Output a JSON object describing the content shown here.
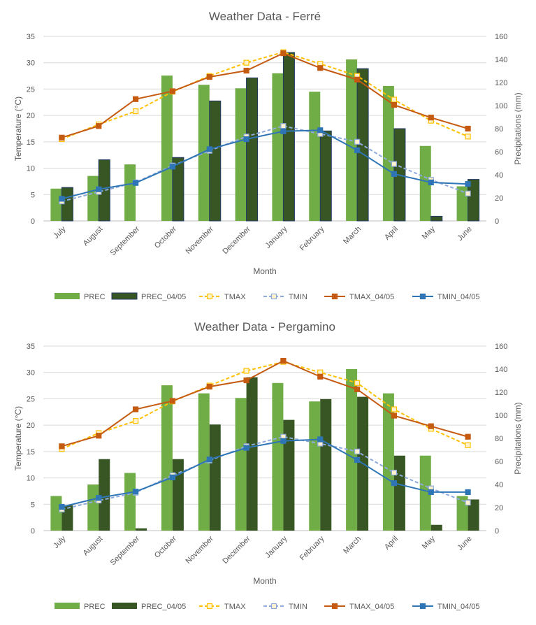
{
  "chart_data": [
    {
      "type": "bar",
      "title": "Weather Data - Ferré",
      "xlabel": "Month",
      "ylabel": "Temperature (°C)",
      "y2label": "Precipitations (mm)",
      "ylim": [
        0,
        35
      ],
      "y2lim": [
        0,
        160
      ],
      "yticks": [
        "0",
        "5",
        "10",
        "15",
        "20",
        "25",
        "30",
        "35"
      ],
      "y2ticks": [
        "0",
        "20",
        "40",
        "60",
        "80",
        "100",
        "120",
        "140",
        "160"
      ],
      "categories": [
        "July",
        "August",
        "September",
        "October",
        "November",
        "December",
        "January",
        "February",
        "March",
        "April",
        "May",
        "June"
      ],
      "series": [
        {
          "name": "PREC",
          "kind": "bar",
          "axis": "y2",
          "color": "#70ad47",
          "values": [
            28,
            39,
            49,
            126,
            118,
            115,
            128,
            112,
            140,
            117,
            65,
            30
          ]
        },
        {
          "name": "PREC_04/05",
          "kind": "bar",
          "axis": "y2",
          "color": "#375623",
          "values": [
            29,
            53,
            0,
            55,
            104,
            124,
            146,
            78,
            132,
            80,
            4,
            36
          ]
        },
        {
          "name": "TMAX",
          "kind": "line",
          "dashed": true,
          "color": "#ffc000",
          "values": [
            15.5,
            18.3,
            20.8,
            24.5,
            27.5,
            30,
            32,
            29.8,
            27.5,
            23,
            19,
            16
          ]
        },
        {
          "name": "TMIN",
          "kind": "line",
          "dashed": true,
          "color": "#8faadc",
          "values": [
            3.7,
            5.5,
            7.3,
            10.5,
            13.3,
            16,
            18,
            16.5,
            15,
            10.8,
            7.8,
            5.2
          ]
        },
        {
          "name": "TMAX_04/05",
          "kind": "line",
          "dashed": false,
          "color": "#c55a11",
          "values": [
            15.8,
            18,
            23.1,
            24.6,
            27.3,
            28.5,
            31.8,
            29,
            26.8,
            22,
            19.6,
            17.5
          ]
        },
        {
          "name": "TMIN_04/05",
          "kind": "line",
          "dashed": false,
          "color": "#2e75b6",
          "values": [
            4.2,
            6,
            7.2,
            10.3,
            13.6,
            15.5,
            17,
            17.2,
            13.4,
            8.9,
            7.3,
            7
          ]
        }
      ],
      "legend": "bottom"
    },
    {
      "type": "bar",
      "title": "Weather Data - Pergamino",
      "xlabel": "Month",
      "ylabel": "Temperature (°C)",
      "y2label": "Precipitations (mm)",
      "ylim": [
        0,
        35
      ],
      "y2lim": [
        0,
        160
      ],
      "yticks": [
        "0",
        "5",
        "10",
        "15",
        "20",
        "25",
        "30",
        "35"
      ],
      "y2ticks": [
        "0",
        "20",
        "40",
        "60",
        "80",
        "100",
        "120",
        "140",
        "160"
      ],
      "categories": [
        "July",
        "August",
        "September",
        "October",
        "November",
        "December",
        "January",
        "February",
        "March",
        "April",
        "May",
        "June"
      ],
      "series": [
        {
          "name": "PREC",
          "kind": "bar",
          "axis": "y2",
          "color": "#70ad47",
          "values": [
            30,
            40,
            50,
            126,
            119,
            115,
            128,
            112,
            140,
            119,
            65,
            30
          ]
        },
        {
          "name": "PREC_04/05",
          "kind": "bar",
          "axis": "y2",
          "color": "#375623",
          "values": [
            22,
            62,
            2,
            62,
            92,
            133,
            96,
            114,
            116,
            65,
            5,
            27
          ]
        },
        {
          "name": "TMAX",
          "kind": "line",
          "dashed": true,
          "color": "#ffc000",
          "values": [
            15.5,
            18.5,
            20.8,
            24.5,
            27.5,
            30.3,
            32,
            30,
            28,
            23,
            19.3,
            16.2
          ]
        },
        {
          "name": "TMIN",
          "kind": "line",
          "dashed": true,
          "color": "#8faadc",
          "values": [
            4,
            5.7,
            7.2,
            10.5,
            13.3,
            16,
            17.8,
            16.5,
            15,
            11,
            8,
            5.3
          ]
        },
        {
          "name": "TMAX_04/05",
          "kind": "line",
          "dashed": false,
          "color": "#c55a11",
          "values": [
            16,
            18,
            23,
            24.6,
            27.3,
            28.5,
            32.2,
            29.2,
            26.8,
            21.8,
            19.8,
            17.8
          ]
        },
        {
          "name": "TMIN_04/05",
          "kind": "line",
          "dashed": false,
          "color": "#2e75b6",
          "values": [
            4.5,
            6.2,
            7.4,
            10.1,
            13.5,
            15.7,
            17,
            17.3,
            13.4,
            9,
            7.3,
            7.3
          ]
        }
      ],
      "legend": "bottom"
    }
  ]
}
